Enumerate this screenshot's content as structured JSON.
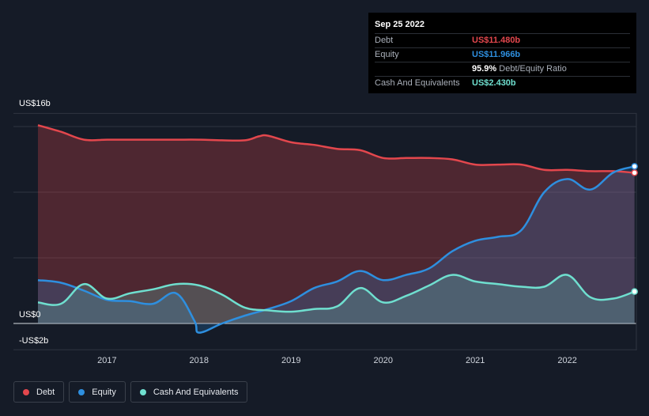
{
  "tooltip": {
    "date": "Sep 25 2022",
    "debt_label": "Debt",
    "debt_value": "US$11.480b",
    "equity_label": "Equity",
    "equity_value": "US$11.966b",
    "ratio_value": "95.9%",
    "ratio_label": "Debt/Equity Ratio",
    "cash_label": "Cash And Equivalents",
    "cash_value": "US$2.430b"
  },
  "colors": {
    "debt": "#e3474d",
    "equity": "#2e8fdf",
    "cash": "#6fdfcf",
    "background": "#151b27"
  },
  "legend": [
    {
      "label": "Debt",
      "color": "#e3474d"
    },
    {
      "label": "Equity",
      "color": "#2e8fdf"
    },
    {
      "label": "Cash And Equivalents",
      "color": "#6fdfcf"
    }
  ],
  "chart_data": {
    "type": "area",
    "y_top_label": "US$16b",
    "y_zero_label": "US$0",
    "y_bottom_label": "-US$2b",
    "ylim": [
      -2,
      16
    ],
    "xlim": [
      2016.25,
      2022.75
    ],
    "x_ticks": [
      "2017",
      "2018",
      "2019",
      "2020",
      "2021",
      "2022"
    ],
    "grid": true,
    "legend_position": "bottom-left",
    "series": [
      {
        "name": "Debt",
        "x": [
          2016.25,
          2016.5,
          2016.75,
          2017.0,
          2017.25,
          2017.5,
          2017.75,
          2018.0,
          2018.25,
          2018.5,
          2018.65,
          2018.75,
          2019.0,
          2019.25,
          2019.5,
          2019.75,
          2020.0,
          2020.25,
          2020.5,
          2020.75,
          2021.0,
          2021.25,
          2021.5,
          2021.75,
          2022.0,
          2022.25,
          2022.5,
          2022.73
        ],
        "values": [
          15.1,
          14.6,
          14.0,
          14.0,
          14.0,
          14.0,
          14.0,
          14.0,
          13.95,
          13.95,
          14.25,
          14.3,
          13.8,
          13.6,
          13.3,
          13.2,
          12.6,
          12.6,
          12.6,
          12.5,
          12.1,
          12.1,
          12.1,
          11.7,
          11.7,
          11.6,
          11.6,
          11.48
        ]
      },
      {
        "name": "Equity",
        "x": [
          2016.25,
          2016.5,
          2016.75,
          2017.0,
          2017.25,
          2017.5,
          2017.75,
          2017.95,
          2018.0,
          2018.25,
          2018.5,
          2018.75,
          2019.0,
          2019.25,
          2019.5,
          2019.75,
          2020.0,
          2020.25,
          2020.5,
          2020.75,
          2021.0,
          2021.25,
          2021.5,
          2021.75,
          2022.0,
          2022.25,
          2022.5,
          2022.73
        ],
        "values": [
          3.3,
          3.1,
          2.5,
          1.8,
          1.7,
          1.5,
          2.3,
          0.2,
          -0.7,
          0.0,
          0.6,
          1.1,
          1.7,
          2.7,
          3.2,
          4.0,
          3.3,
          3.7,
          4.2,
          5.5,
          6.3,
          6.6,
          7.1,
          10.0,
          11.0,
          10.2,
          11.5,
          11.966
        ]
      },
      {
        "name": "Cash And Equivalents",
        "x": [
          2016.25,
          2016.5,
          2016.75,
          2017.0,
          2017.25,
          2017.5,
          2017.75,
          2018.0,
          2018.25,
          2018.5,
          2018.75,
          2019.0,
          2019.25,
          2019.5,
          2019.75,
          2020.0,
          2020.25,
          2020.5,
          2020.75,
          2021.0,
          2021.25,
          2021.5,
          2021.75,
          2022.0,
          2022.25,
          2022.5,
          2022.73
        ],
        "values": [
          1.6,
          1.5,
          3.0,
          1.9,
          2.3,
          2.6,
          3.0,
          2.9,
          2.2,
          1.2,
          1.0,
          0.9,
          1.1,
          1.3,
          2.7,
          1.6,
          2.1,
          2.9,
          3.7,
          3.2,
          3.0,
          2.8,
          2.8,
          3.7,
          2.0,
          1.9,
          2.43
        ]
      }
    ]
  }
}
